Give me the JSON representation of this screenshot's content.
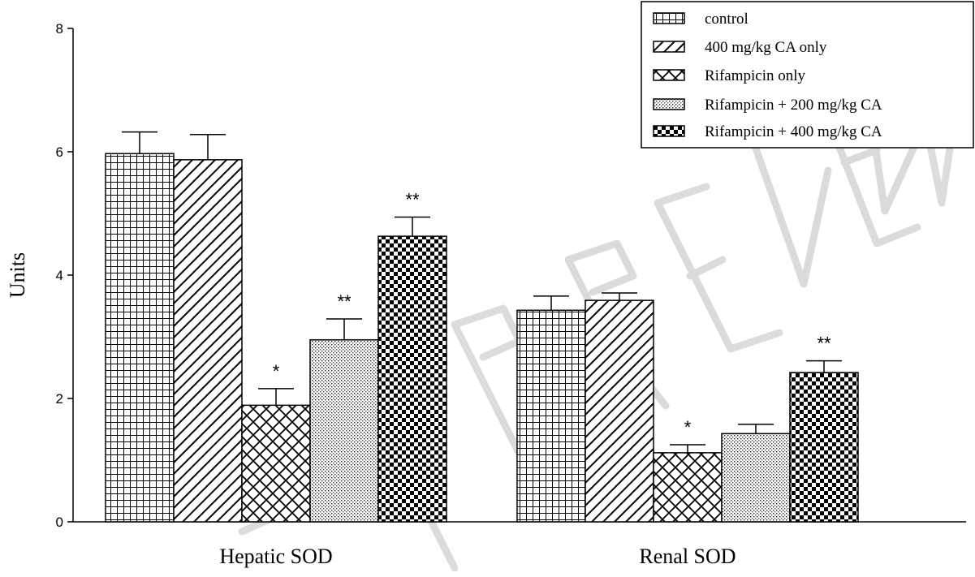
{
  "chart_data": {
    "type": "bar",
    "title": "",
    "xlabel": "",
    "ylabel": "Units",
    "ylim": [
      0,
      8
    ],
    "yticks": [
      0,
      2,
      4,
      6,
      8
    ],
    "grid": false,
    "legend_position": "top-right",
    "categories": [
      "Hepatic SOD",
      "Renal SOD"
    ],
    "series": [
      {
        "name": "control",
        "pattern": "grid",
        "values": [
          5.97,
          3.43
        ],
        "errors": [
          0.35,
          0.23
        ],
        "annotations": [
          "",
          ""
        ]
      },
      {
        "name": "400 mg/kg CA only",
        "pattern": "diagonal-lines",
        "values": [
          5.87,
          3.59
        ],
        "errors": [
          0.41,
          0.12
        ],
        "annotations": [
          "",
          ""
        ]
      },
      {
        "name": "Rifampicin only",
        "pattern": "crosshatch",
        "values": [
          1.89,
          1.12
        ],
        "errors": [
          0.27,
          0.13
        ],
        "annotations": [
          "*",
          "*"
        ]
      },
      {
        "name": "Rifampicin + 200 mg/kg CA",
        "pattern": "dots",
        "values": [
          2.95,
          1.43
        ],
        "errors": [
          0.34,
          0.15
        ],
        "annotations": [
          "**",
          ""
        ]
      },
      {
        "name": "Rifampicin + 400 mg/kg CA",
        "pattern": "checkerboard",
        "values": [
          4.63,
          2.42
        ],
        "errors": [
          0.31,
          0.19
        ],
        "annotations": [
          "**",
          "**"
        ]
      }
    ],
    "watermark": "PREVIEW"
  }
}
